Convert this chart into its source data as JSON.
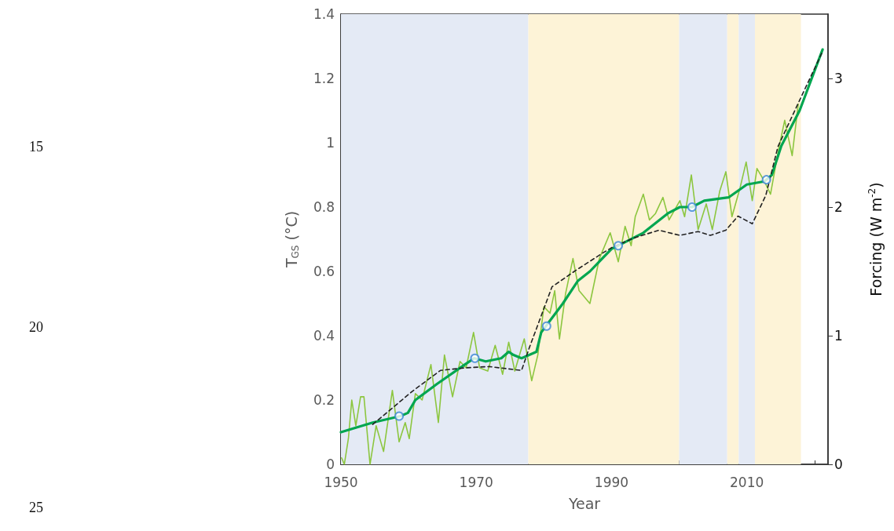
{
  "chart_data": {
    "type": "line",
    "xlabel": "Year",
    "ylabel": "T$_{GS}$ (°C)",
    "y2label": "Forcing (W m$^{-2}$)",
    "xlim": [
      1950,
      2022
    ],
    "xticks": [
      1950,
      {
        "value": 1955,
        "label": null
      },
      {
        "value": 1960,
        "label": null
      },
      {
        "value": 1965,
        "label": null
      },
      1970,
      {
        "value": 1975,
        "label": null
      },
      {
        "value": 1980,
        "label": null
      },
      {
        "value": 1985,
        "label": null
      },
      1990,
      {
        "value": 1995,
        "label": null
      },
      {
        "value": 2000,
        "label": null
      },
      {
        "value": 2005,
        "label": null
      },
      2010,
      {
        "value": 2015,
        "label": null
      },
      {
        "value": 2020,
        "label": null
      }
    ],
    "ylim": [
      0,
      1.4
    ],
    "yticks": [
      0,
      {
        "value": 0.1,
        "label": null
      },
      0.2,
      {
        "value": 0.3,
        "label": null
      },
      0.4,
      {
        "value": 0.5,
        "label": null
      },
      0.6,
      {
        "value": 0.7,
        "label": null
      },
      0.8,
      {
        "value": 0.9,
        "label": null
      },
      1,
      {
        "value": 1.1,
        "label": null
      },
      1.2,
      {
        "value": 1.3,
        "label": null
      },
      1.4
    ],
    "y2lim": [
      0,
      3.5
    ],
    "y2ticks": [
      0,
      1,
      2,
      3
    ],
    "grid": false,
    "bands": [
      {
        "axis": "x",
        "from": 1950,
        "to": 1977.7,
        "label": null,
        "color": "#e4eaf5"
      },
      {
        "axis": "x",
        "from": 1977.7,
        "to": 2000,
        "label": null,
        "color": "#fdf3d7"
      },
      {
        "axis": "x",
        "from": 2000,
        "to": 2007.1,
        "label": null,
        "color": "#e4eaf5"
      },
      {
        "axis": "x",
        "from": 2007.1,
        "to": 2008.8,
        "label": null,
        "color": "#fdf3d7"
      },
      {
        "axis": "x",
        "from": 2008.8,
        "to": 2011.2,
        "label": null,
        "color": "#e4eaf5"
      },
      {
        "axis": "x",
        "from": 2011.2,
        "to": 2018,
        "label": null,
        "color": "#fdf3d7"
      }
    ],
    "annotations": [
      "15",
      "20",
      "25"
    ],
    "series": [
      {
        "color": "#8cc63f",
        "marker": "none",
        "line_style": "solid",
        "x": [
          1950.1,
          1950.5,
          1951.1,
          1951.6,
          1952.2,
          1952.9,
          1953.4,
          1954.3,
          1955.2,
          1956.3,
          1957.6,
          1958.6,
          1959.5,
          1960.1,
          1961,
          1962,
          1963.3,
          1964.4,
          1965.3,
          1966.5,
          1967.6,
          1968.5,
          1969.6,
          1970.5,
          1971.7,
          1972.8,
          1973.9,
          1974.8,
          1975.7,
          1977.1,
          1978.2,
          1979.1,
          1980,
          1980.9,
          1981.6,
          1982.3,
          1983.2,
          1984.3,
          1985.2,
          1986.8,
          1988.2,
          1989.8,
          1991,
          1992,
          1992.9,
          1993.5,
          1994.7,
          1995.6,
          1996.5,
          1997.6,
          1998.5,
          2000.1,
          2000.8,
          2001.8,
          2002.8,
          2004,
          2004.9,
          2006,
          2006.9,
          2007.8,
          2009,
          2009.9,
          2010.8,
          2011.5,
          2012.6,
          2013.5,
          2014.7,
          2015.6,
          2016.7,
          2017.6
        ],
        "values": [
          0.02,
          0.0,
          0.08,
          0.2,
          0.12,
          0.21,
          0.21,
          0.0,
          0.12,
          0.04,
          0.23,
          0.07,
          0.13,
          0.08,
          0.22,
          0.2,
          0.31,
          0.13,
          0.34,
          0.21,
          0.32,
          0.3,
          0.41,
          0.3,
          0.29,
          0.37,
          0.28,
          0.38,
          0.29,
          0.39,
          0.26,
          0.34,
          0.49,
          0.47,
          0.54,
          0.39,
          0.53,
          0.64,
          0.54,
          0.5,
          0.64,
          0.72,
          0.63,
          0.74,
          0.68,
          0.77,
          0.84,
          0.76,
          0.78,
          0.83,
          0.76,
          0.82,
          0.77,
          0.9,
          0.73,
          0.81,
          0.73,
          0.85,
          0.91,
          0.77,
          0.86,
          0.94,
          0.82,
          0.92,
          0.88,
          0.84,
          0.98,
          1.07,
          0.96,
          1.12
        ]
      },
      {
        "color": "#00a650",
        "marker": "none",
        "line_style": "solid",
        "x": [
          1950,
          1954.7,
          1958.8,
          1959.9,
          1961,
          1964.2,
          1968.3,
          1969.7,
          1971.4,
          1973.7,
          1974.8,
          1975.5,
          1976.7,
          1978.9,
          1979.6,
          1980.3,
          1982.8,
          1985,
          1986.8,
          1990,
          1991,
          1994.7,
          1998.3,
          2000.1,
          2001.9,
          2003.7,
          2007.3,
          2010,
          2012.6,
          2013.7,
          2015.1,
          2017.8,
          2021.2
        ],
        "values": [
          0.1,
          0.13,
          0.15,
          0.16,
          0.2,
          0.25,
          0.31,
          0.33,
          0.32,
          0.33,
          0.35,
          0.34,
          0.33,
          0.35,
          0.41,
          0.43,
          0.5,
          0.57,
          0.6,
          0.67,
          0.68,
          0.72,
          0.78,
          0.8,
          0.8,
          0.82,
          0.83,
          0.87,
          0.88,
          0.9,
          0.99,
          1.1,
          1.29
        ]
      },
      {
        "axis": "y2",
        "color": "#222222",
        "marker": "none",
        "line_style": "dashed",
        "x": [
          1954.7,
          1960.6,
          1964.7,
          1968.3,
          1971.9,
          1976.7,
          1977.8,
          1981.2,
          1984.5,
          1988.6,
          1990.2,
          1993.3,
          1997,
          2000.1,
          2002.8,
          2004.6,
          2006.9,
          2008.7,
          2010.8,
          2012.8,
          2014.6,
          2017.8,
          2021.2
        ],
        "values": [
          0.31,
          0.57,
          0.73,
          0.75,
          0.76,
          0.73,
          0.9,
          1.38,
          1.5,
          1.64,
          1.69,
          1.76,
          1.82,
          1.78,
          1.81,
          1.78,
          1.82,
          1.93,
          1.87,
          2.09,
          2.47,
          2.83,
          3.21
        ]
      },
      {
        "type": "scatter",
        "color": "#3a86d6",
        "marker": "circle",
        "x": [
          1958.6,
          1969.8,
          1980.4,
          1991,
          2001.9,
          2012.9
        ],
        "values": [
          0.15,
          0.33,
          0.43,
          0.68,
          0.8,
          0.885
        ]
      }
    ]
  }
}
